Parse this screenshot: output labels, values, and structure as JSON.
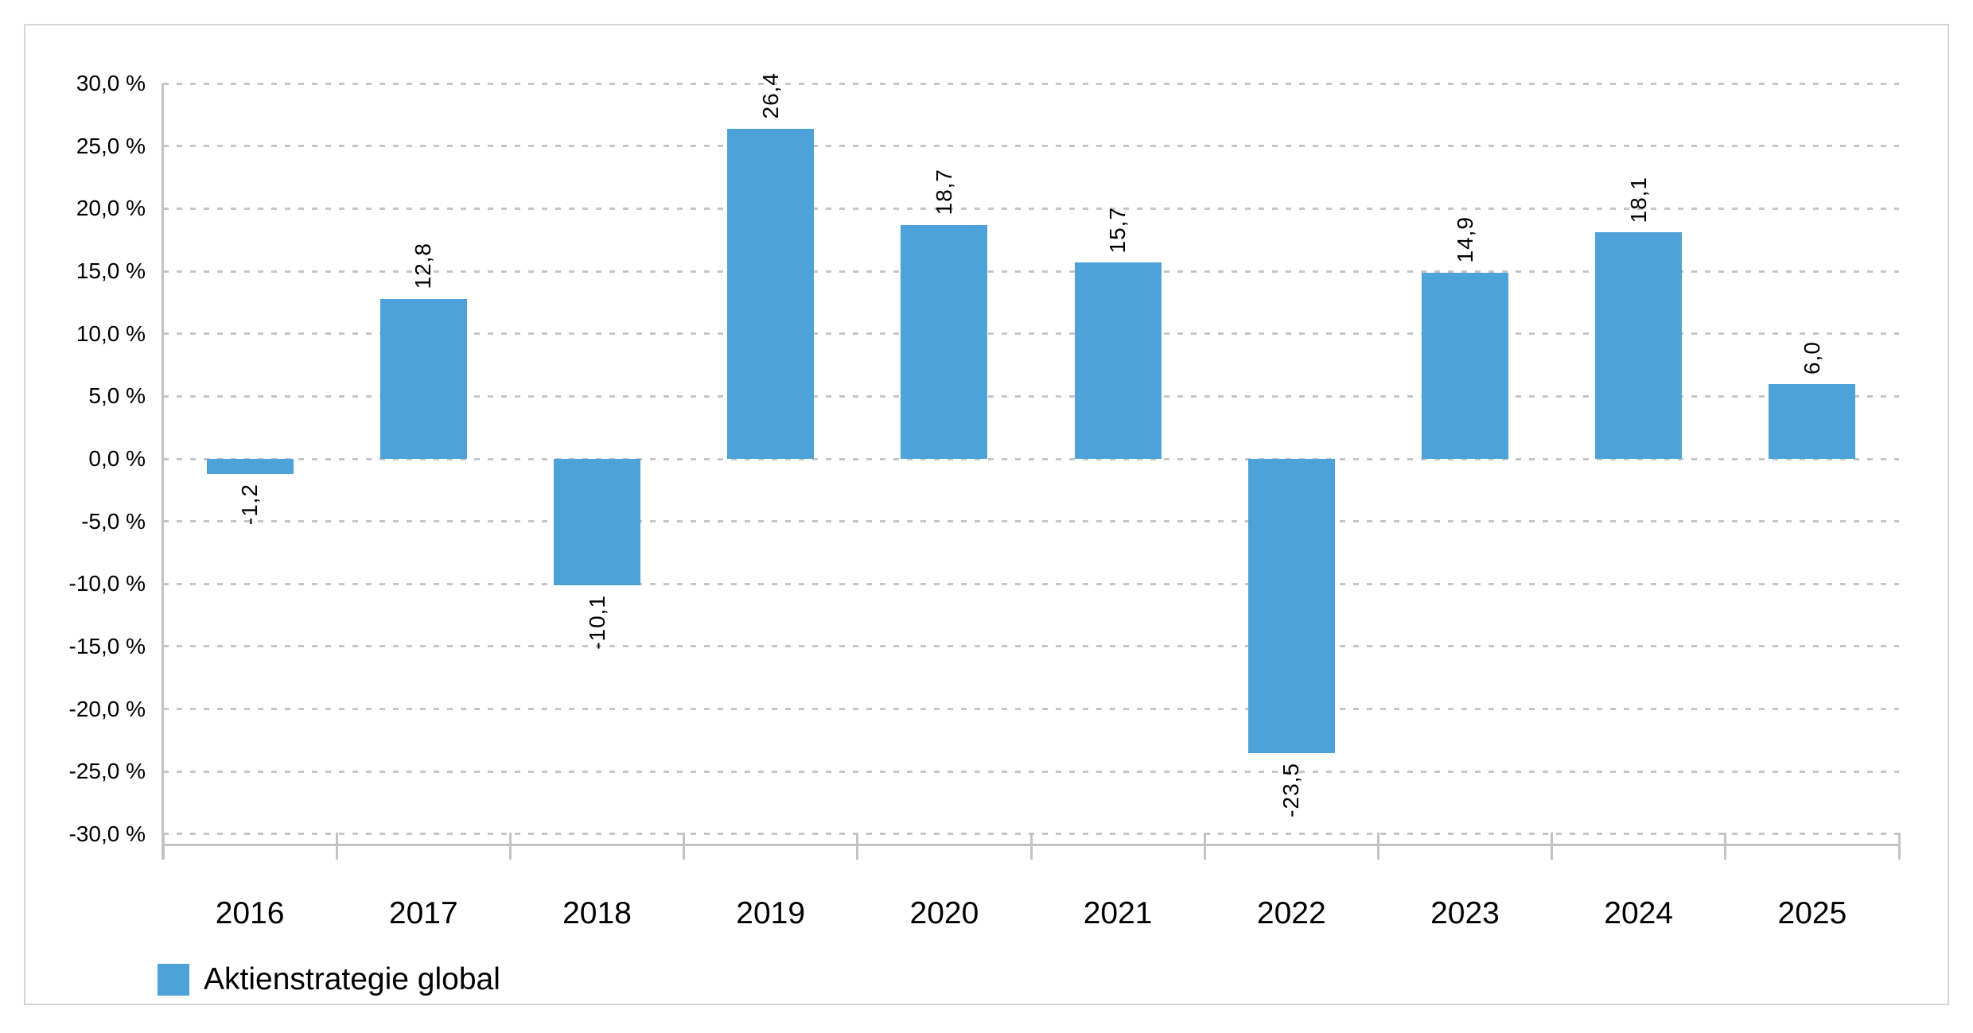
{
  "chart_data": {
    "type": "bar",
    "title": "",
    "categories": [
      "2016",
      "2017",
      "2018",
      "2019",
      "2020",
      "2021",
      "2022",
      "2023",
      "2024",
      "2025"
    ],
    "series": [
      {
        "name": "Aktienstrategie global",
        "values": [
          -1.2,
          12.8,
          -10.1,
          26.4,
          18.7,
          15.7,
          -23.5,
          14.9,
          18.1,
          6.0
        ]
      }
    ],
    "value_labels": [
      "-1,2",
      "12,8",
      "-10,1",
      "26,4",
      "18,7",
      "15,7",
      "-23,5",
      "14,9",
      "18,1",
      "6,0"
    ],
    "value_label_style": "rotated 90deg counterclockwise, outside bar end",
    "xlabel": "",
    "ylabel": "",
    "ylim": [
      -30,
      30
    ],
    "y_tick_step": 5,
    "y_tick_values": [
      30,
      25,
      20,
      15,
      10,
      5,
      0,
      -5,
      -10,
      -15,
      -20,
      -25,
      -30
    ],
    "y_tick_labels": [
      "30,0 %",
      "25,0 %",
      "20,0 %",
      "15,0 %",
      "10,0 %",
      "5,0 %",
      "0,0 %",
      "-5,0 %",
      "-10,0 %",
      "-15,0 %",
      "-20,0 %",
      "-25,0 %",
      "-30,0 %"
    ],
    "grid": "horizontal dashed lines, on",
    "legend_position": "bottom-left",
    "bar_color": "#4da2d9"
  },
  "legend": {
    "label": "Aktienstrategie global",
    "swatch_color": "#4da2d9"
  },
  "colors": {
    "bar": "#4da2d9",
    "axis": "#c3c3c3",
    "gridline": "#c6c6c6",
    "frame_border": "#d6d6d6",
    "text": "#000000",
    "background": "#ffffff"
  }
}
